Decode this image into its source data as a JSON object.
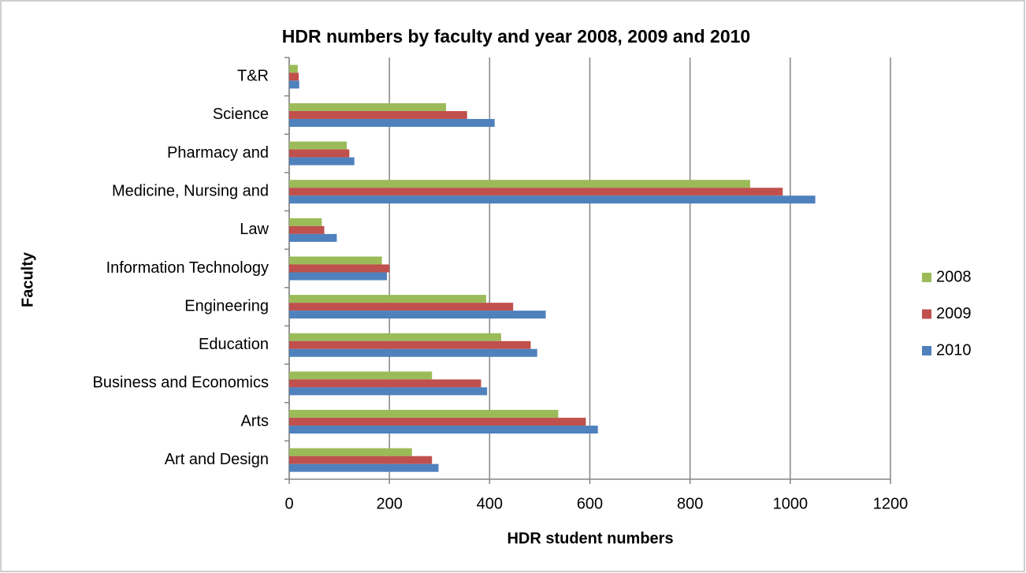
{
  "chart_data": {
    "type": "hbar",
    "title": "HDR numbers by faculty and year 2008, 2009 and 2010",
    "x_label": "HDR student numbers",
    "y_label": "Faculty",
    "categories": [
      "Art and Design",
      "Arts",
      "Business and Economics",
      "Education",
      "Engineering",
      "Information Technology",
      "Law",
      "Medicine, Nursing and",
      "Pharmacy and",
      "Science",
      "T&R"
    ],
    "series": [
      {
        "name": "2008",
        "color": "#9bbb59",
        "values": [
          245,
          537,
          285,
          423,
          393,
          185,
          65,
          920,
          115,
          313,
          17
        ]
      },
      {
        "name": "2009",
        "color": "#c0504d",
        "values": [
          285,
          592,
          383,
          482,
          447,
          200,
          70,
          985,
          120,
          355,
          19
        ]
      },
      {
        "name": "2010",
        "color": "#4f81bd",
        "values": [
          298,
          616,
          395,
          495,
          512,
          195,
          95,
          1050,
          130,
          410,
          20
        ]
      }
    ],
    "xlim": [
      0,
      1200
    ],
    "xticks": [
      0,
      200,
      400,
      600,
      800,
      1000,
      1200
    ],
    "grid": true,
    "legend": "right"
  }
}
